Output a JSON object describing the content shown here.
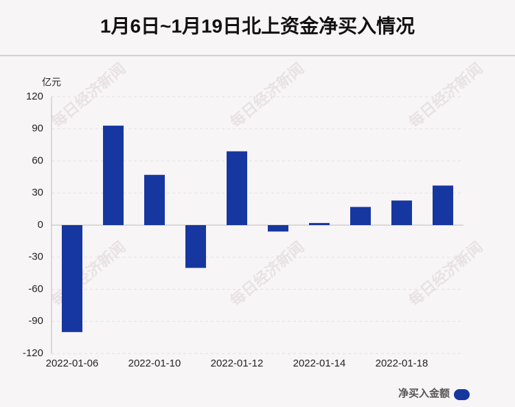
{
  "chart_data": {
    "type": "bar",
    "title": "1月6日~1月19日北上资金净买入情况",
    "y_unit": "亿元",
    "watermark": "每日经济新闻",
    "categories": [
      "2022-01-06",
      null,
      "2022-01-10",
      null,
      "2022-01-12",
      null,
      "2022-01-14",
      null,
      "2022-01-18",
      null
    ],
    "series": [
      {
        "name": "净买入金额",
        "color": "#1737a0",
        "values": [
          -100,
          93,
          47,
          -40,
          69,
          -6,
          2,
          17,
          23,
          37
        ]
      }
    ],
    "ylim": [
      -120,
      120
    ],
    "yticks": [
      -120,
      -90,
      -60,
      -30,
      0,
      30,
      60,
      90,
      120
    ],
    "grid": true,
    "legend": "bottom-right"
  }
}
